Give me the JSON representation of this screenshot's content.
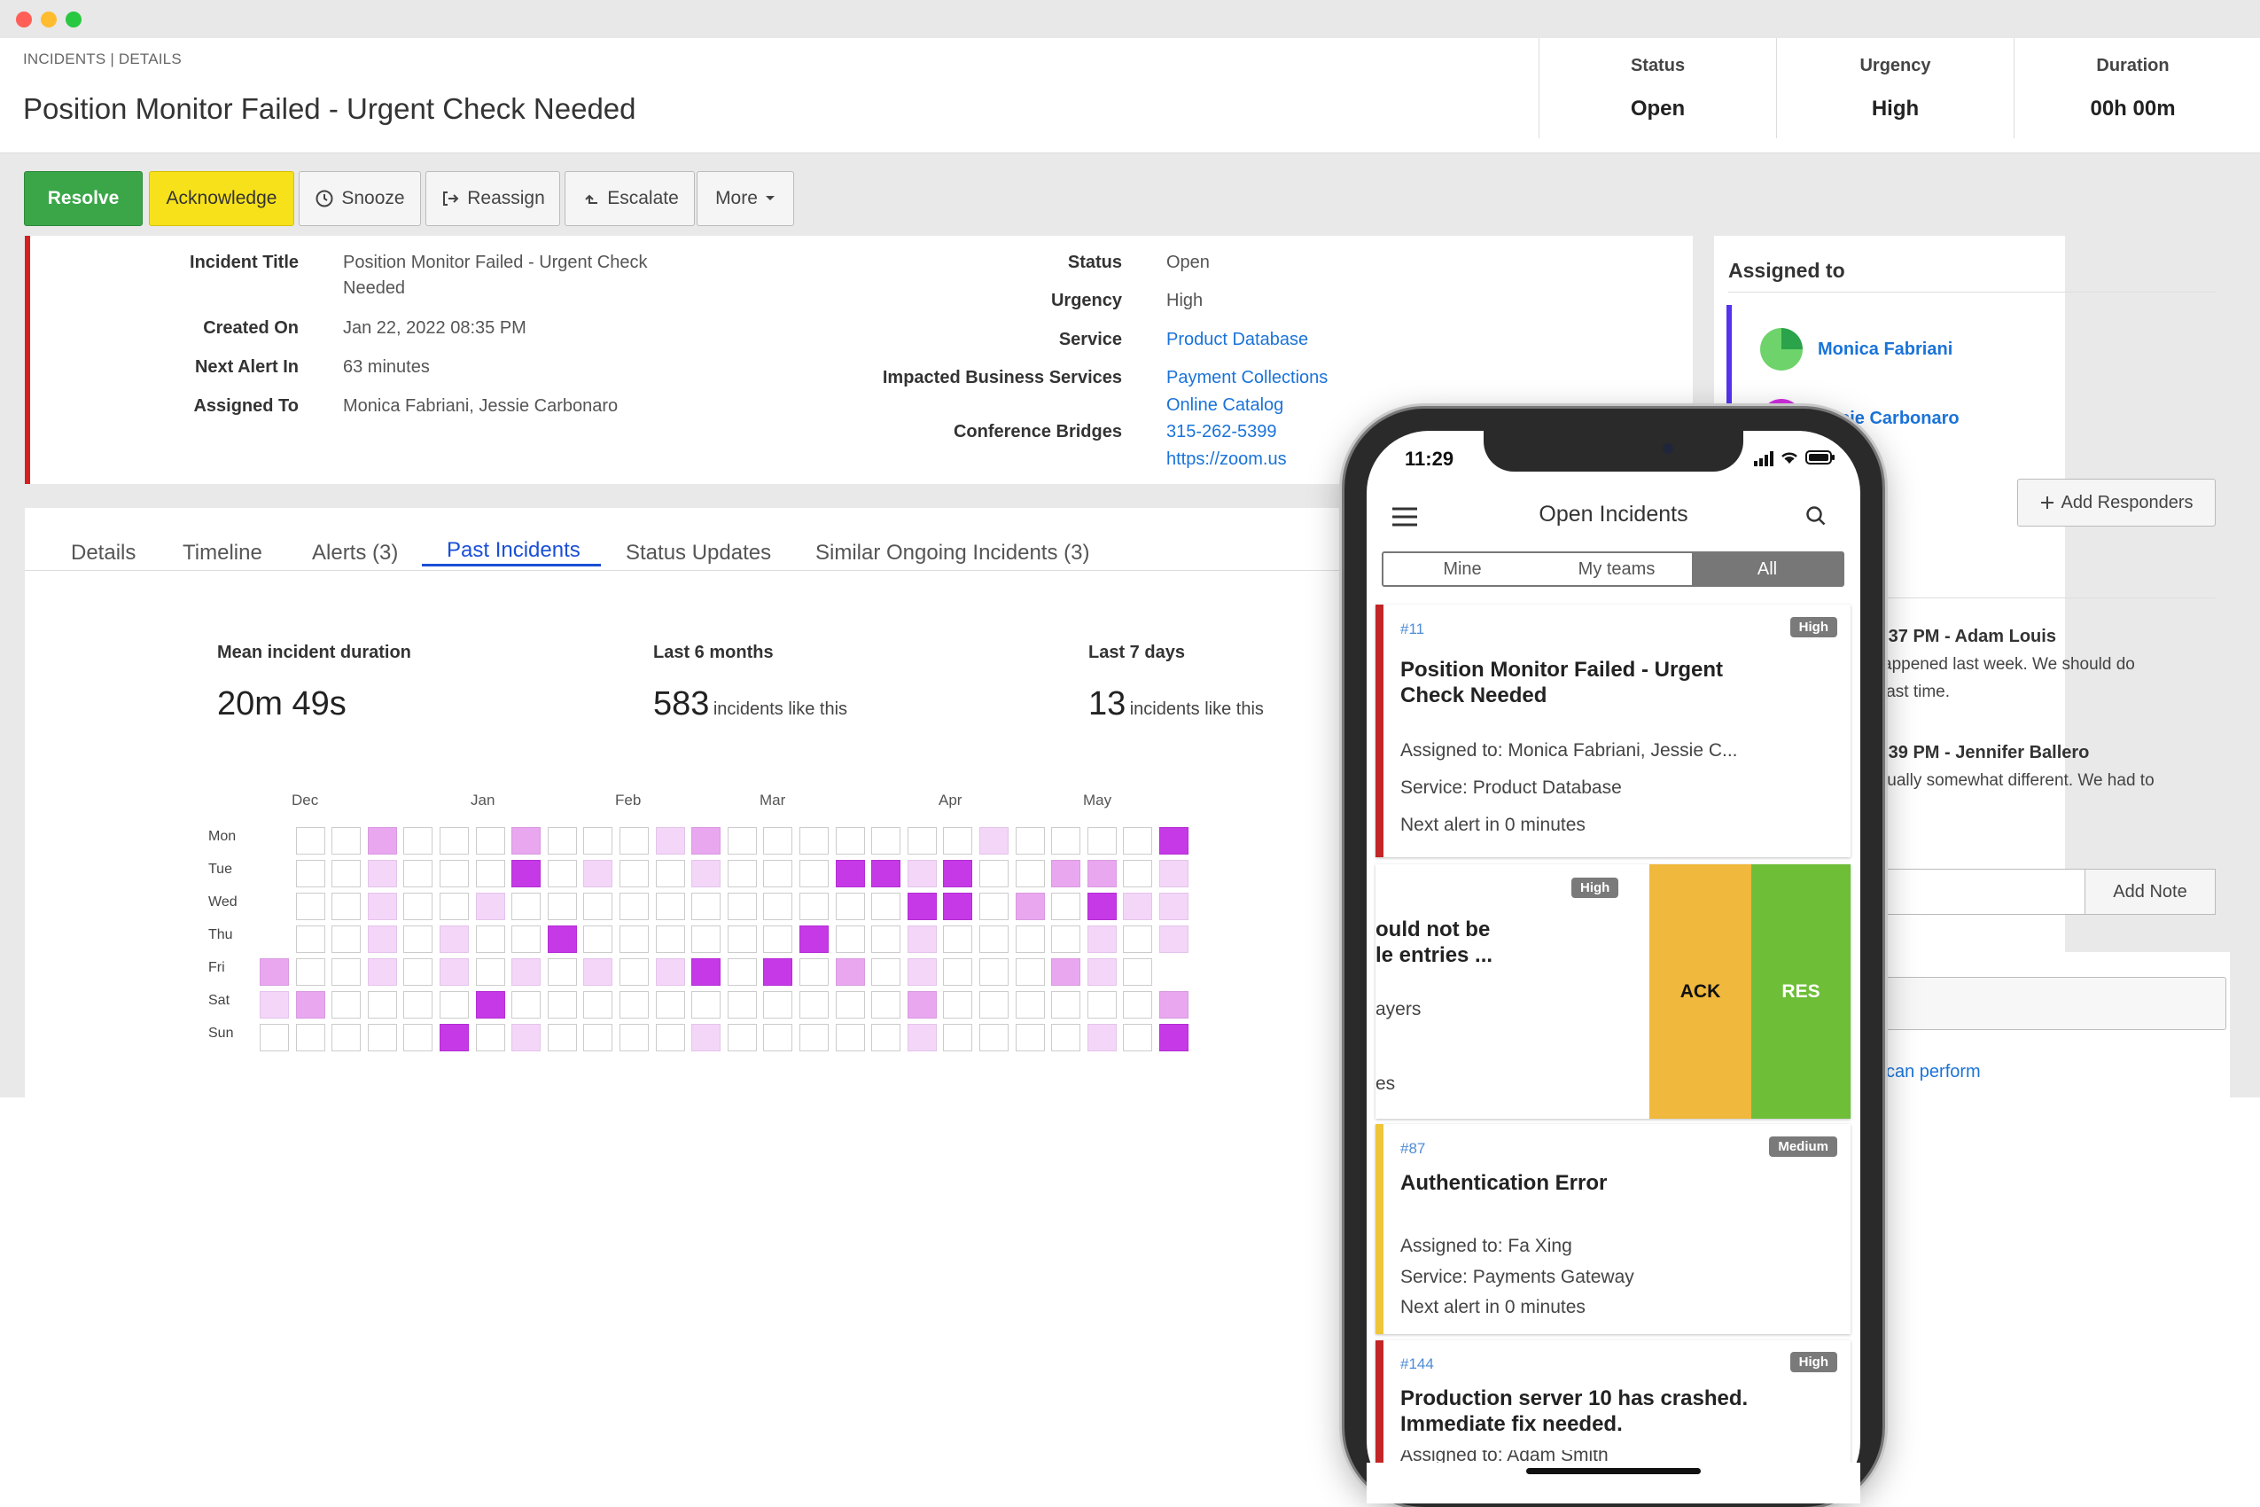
{
  "breadcrumb": "INCIDENTS | DETAILS",
  "page_title": "Position Monitor Failed - Urgent Check Needed",
  "header_stats": [
    {
      "label": "Status",
      "value": "Open"
    },
    {
      "label": "Urgency",
      "value": "High"
    },
    {
      "label": "Duration",
      "value": "00h 00m"
    }
  ],
  "toolbar": {
    "resolve": "Resolve",
    "acknowledge": "Acknowledge",
    "snooze": "Snooze",
    "reassign": "Reassign",
    "escalate": "Escalate",
    "more": "More"
  },
  "details": {
    "incident_title_label": "Incident Title",
    "incident_title_line1": "Position Monitor Failed - Urgent Check",
    "incident_title_line2": "Needed",
    "created_on_label": "Created On",
    "created_on": "Jan 22, 2022 08:35 PM",
    "next_alert_label": "Next Alert In",
    "next_alert": "63 minutes",
    "assigned_to_label": "Assigned To",
    "assigned_to": "Monica Fabriani, Jessie Carbonaro",
    "status_label": "Status",
    "status": "Open",
    "urgency_label": "Urgency",
    "urgency": "High",
    "service_label": "Service",
    "service": "Product Database",
    "impacted_label": "Impacted Business Services",
    "impacted_1": "Payment Collections",
    "impacted_2": "Online Catalog",
    "bridges_label": "Conference Bridges",
    "bridge_phone": "315-262-5399",
    "bridge_url": "https://zoom.us"
  },
  "tabs": [
    "Details",
    "Timeline",
    "Alerts (3)",
    "Past Incidents",
    "Status Updates",
    "Similar Ongoing Incidents (3)"
  ],
  "metrics": {
    "mean_label": "Mean incident duration",
    "mean_value": "20m 49s",
    "six_label": "Last 6 months",
    "six_value": "583",
    "six_suffix": "incidents like this",
    "seven_label": "Last 7 days",
    "seven_value": "13",
    "seven_suffix": "incidents like this"
  },
  "heatmap": {
    "months": [
      "Dec",
      "Jan",
      "Feb",
      "Mar",
      "Apr",
      "May"
    ],
    "days": [
      "Mon",
      "Tue",
      "Wed",
      "Thu",
      "Fri",
      "Sat",
      "Sun"
    ],
    "rows": [
      [
        null,
        0,
        0,
        2,
        0,
        0,
        0,
        2,
        0,
        0,
        0,
        1,
        2,
        0,
        0,
        0,
        0,
        0,
        0,
        0,
        1,
        0,
        0,
        0,
        0,
        3
      ],
      [
        null,
        0,
        0,
        1,
        0,
        0,
        0,
        3,
        0,
        1,
        0,
        0,
        1,
        0,
        0,
        0,
        3,
        3,
        1,
        3,
        0,
        0,
        2,
        2,
        0,
        1
      ],
      [
        null,
        0,
        0,
        1,
        0,
        0,
        1,
        0,
        0,
        0,
        0,
        0,
        0,
        0,
        0,
        0,
        0,
        0,
        3,
        3,
        0,
        2,
        0,
        3,
        1,
        1
      ],
      [
        null,
        0,
        0,
        1,
        0,
        1,
        0,
        0,
        3,
        0,
        0,
        0,
        0,
        0,
        0,
        3,
        0,
        0,
        1,
        0,
        0,
        0,
        0,
        1,
        0,
        1
      ],
      [
        2,
        0,
        0,
        1,
        0,
        1,
        0,
        1,
        0,
        1,
        0,
        1,
        3,
        0,
        3,
        0,
        2,
        0,
        1,
        0,
        0,
        0,
        2,
        1,
        0,
        null
      ],
      [
        1,
        2,
        0,
        0,
        0,
        0,
        3,
        0,
        0,
        0,
        0,
        0,
        0,
        0,
        0,
        0,
        0,
        0,
        2,
        0,
        0,
        0,
        0,
        0,
        0,
        2
      ],
      [
        0,
        0,
        0,
        0,
        0,
        3,
        0,
        1,
        0,
        0,
        0,
        0,
        1,
        0,
        0,
        0,
        0,
        0,
        1,
        0,
        0,
        0,
        0,
        1,
        0,
        3
      ]
    ]
  },
  "assigned_panel": {
    "title": "Assigned to",
    "person1": "Monica Fabriani",
    "person2": "ssie Carbonaro",
    "add_responders": "Add Responders",
    "note1_head": ":37 PM - Adam Louis",
    "note1_l1": "appened last week. We should do",
    "note1_l2": "last time.",
    "note2_head": ":39 PM - Jennifer Ballero",
    "note2_l1": "tually somewhat different. We had to",
    "note2_l2": ".",
    "add_note": "Add Note",
    "can_perform": "can perform"
  },
  "phone": {
    "time": "11:29",
    "title": "Open Incidents",
    "segments": [
      "Mine",
      "My teams",
      "All"
    ],
    "card1": {
      "num": "#11",
      "badge": "High",
      "title_l1": "Position Monitor Failed - Urgent",
      "title_l2": "Check Needed",
      "assigned": "Assigned to: Monica Fabriani, Jessie C...",
      "service": "Service: Product Database",
      "next": "Next alert in 0 minutes"
    },
    "card2": {
      "badge": "High",
      "title_l1": "ould not be",
      "title_l2": "le entries ...",
      "line1": "ayers",
      "line2": "es",
      "ack": "ACK",
      "res": "RES"
    },
    "card3": {
      "num": "#87",
      "badge": "Medium",
      "title": "Authentication Error",
      "assigned": "Assigned to: Fa Xing",
      "service": "Service: Payments Gateway",
      "next": "Next alert in 0 minutes"
    },
    "card4": {
      "num": "#144",
      "badge": "High",
      "title_l1": "Production server 10 has crashed.",
      "title_l2": "Immediate fix needed.",
      "assigned": "Assigned to: Adam Smith"
    }
  },
  "colors": {
    "resolve": "#3aa648",
    "acknowledge": "#f7e11a",
    "critical_bar": "#d42020",
    "link": "#1a73d9",
    "ack_swipe": "#f0b83c",
    "res_swipe": "#6ebe38"
  }
}
